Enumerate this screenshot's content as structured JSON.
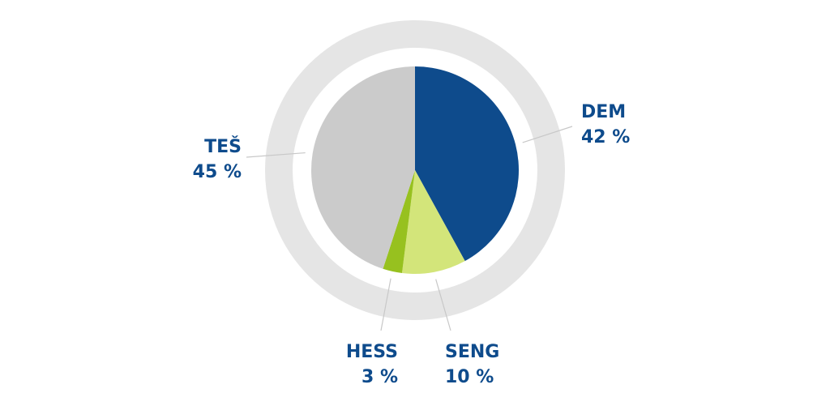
{
  "chart_data": {
    "type": "pie",
    "slices": [
      {
        "label": "DEM",
        "value": 42,
        "value_label": "42 %",
        "color": "#0e4b8c"
      },
      {
        "label": "SENG",
        "value": 10,
        "value_label": "10 %",
        "color": "#d3e57a"
      },
      {
        "label": "HESS",
        "value": 3,
        "value_label": "3 %",
        "color": "#97c11f"
      },
      {
        "label": "TEŠ",
        "value": 45,
        "value_label": "45 %",
        "color": "#cbcbcb"
      }
    ],
    "ring_color": "#e5e5e5",
    "label_color": "#0e4b8c",
    "leader_color": "#c8c8c8"
  }
}
